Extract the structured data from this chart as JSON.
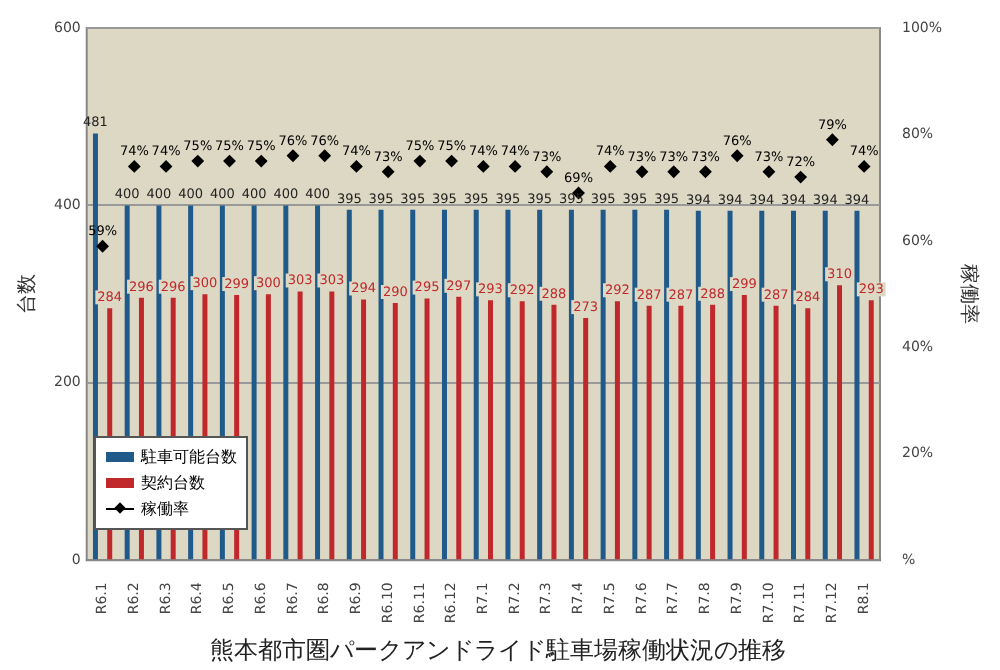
{
  "chart_data": {
    "type": "bar",
    "title": "熊本都市圏パークアンドライド駐車場稼働状況の推移",
    "categories": [
      "R6.1",
      "R6.2",
      "R6.3",
      "R6.4",
      "R6.5",
      "R6.6",
      "R6.7",
      "R6.8",
      "R6.9",
      "R6.10",
      "R6.11",
      "R6.12",
      "R7.1",
      "R7.2",
      "R7.3",
      "R7.4",
      "R7.5",
      "R7.6",
      "R7.7",
      "R7.8",
      "R7.9",
      "R7.10",
      "R7.11",
      "R7.12",
      "R8.1"
    ],
    "series": [
      {
        "name": "駐車可能台数",
        "color": "#1f5a8a",
        "values": [
          481,
          400,
          400,
          400,
          400,
          400,
          400,
          400,
          395,
          395,
          395,
          395,
          395,
          395,
          395,
          395,
          395,
          395,
          395,
          394,
          394,
          394,
          394,
          394,
          394
        ]
      },
      {
        "name": "契約台数",
        "color": "#c0282c",
        "values": [
          284,
          296,
          296,
          300,
          299,
          300,
          303,
          303,
          294,
          290,
          295,
          297,
          293,
          292,
          288,
          273,
          292,
          287,
          287,
          288,
          299,
          287,
          284,
          310,
          293
        ]
      },
      {
        "name": "稼働率",
        "type": "scatter",
        "axis": "y2",
        "color": "#000000",
        "marker": "diamond",
        "values": [
          59,
          74,
          74,
          75,
          75,
          75,
          76,
          76,
          74,
          73,
          75,
          75,
          74,
          74,
          73,
          69,
          74,
          73,
          73,
          73,
          76,
          73,
          72,
          79,
          74
        ],
        "value_labels": [
          "59%",
          "74%",
          "74%",
          "75%",
          "75%",
          "75%",
          "76%",
          "76%",
          "74%",
          "73%",
          "75%",
          "75%",
          "74%",
          "74%",
          "73%",
          "69%",
          "74%",
          "73%",
          "73%",
          "73%",
          "76%",
          "73%",
          "72%",
          "79%",
          "74%"
        ]
      }
    ],
    "ylabel": "台数",
    "y2label": "稼働率",
    "ylim": [
      0,
      600
    ],
    "yticks": [
      0,
      200,
      400,
      600
    ],
    "y2lim": [
      0,
      100
    ],
    "y2ticks": [
      {
        "value": 0,
        "label": "%"
      },
      {
        "value": 20,
        "label": "20%"
      },
      {
        "value": 40,
        "label": "40%"
      },
      {
        "value": 60,
        "label": "60%"
      },
      {
        "value": 80,
        "label": "80%"
      },
      {
        "value": 100,
        "label": "100%"
      }
    ],
    "grid": "y",
    "legend": "bottom left",
    "data_labels": true
  }
}
